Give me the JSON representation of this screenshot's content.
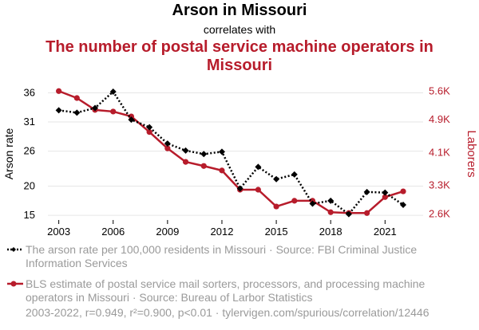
{
  "header": {
    "title": "Arson in Missouri",
    "subtitle": "correlates with",
    "title2": "The number of postal service machine operators in Missouri"
  },
  "chart_data": {
    "type": "line",
    "x": [
      2003,
      2004,
      2005,
      2006,
      2007,
      2008,
      2009,
      2010,
      2011,
      2012,
      2013,
      2014,
      2015,
      2016,
      2017,
      2018,
      2019,
      2020,
      2021,
      2022
    ],
    "xticks": [
      "2003",
      "2006",
      "2009",
      "2012",
      "2015",
      "2018",
      "2021"
    ],
    "xlim": [
      2002.4,
      2023.1
    ],
    "series": [
      {
        "name": "The arson rate per 100,000 residents in Missouri · Source: FBI Criminal Justice Information Services",
        "axis": "left",
        "color": "#000000",
        "style": "dotted-diamond",
        "values": [
          33.0,
          32.6,
          33.4,
          36.2,
          31.4,
          30.1,
          27.3,
          26.1,
          25.5,
          25.9,
          19.6,
          23.3,
          21.2,
          22.0,
          17.0,
          17.5,
          15.2,
          19.0,
          18.9,
          16.8
        ]
      },
      {
        "name": "BLS estimate of postal service mail sorters, processors, and processing machine operators in Missouri · Source: Bureau of Larbor Statistics",
        "axis": "right",
        "color": "#b71c2b",
        "style": "solid-circle",
        "values": [
          5600,
          5430,
          5140,
          5100,
          4980,
          4600,
          4200,
          3870,
          3770,
          3660,
          3190,
          3190,
          2780,
          2920,
          2920,
          2640,
          2620,
          2620,
          3010,
          3150
        ]
      }
    ],
    "left_axis": {
      "label": "Arson rate",
      "ticks": [
        15,
        20,
        26,
        31,
        36
      ],
      "tick_labels": [
        "15",
        "20",
        "26",
        "31",
        "36"
      ],
      "ylim": [
        14.2,
        37.7
      ]
    },
    "right_axis": {
      "label": "Laborers",
      "ticks": [
        2600,
        3300,
        4100,
        4900,
        5600
      ],
      "tick_labels": [
        "2.6K",
        "3.3K",
        "4.1K",
        "4.9K",
        "5.6K"
      ],
      "ylim": [
        2450,
        5800
      ]
    },
    "grid": "horizontal",
    "legend_position": "bottom"
  },
  "footer": {
    "stats": "2003-2022, r=0.949, r²=0.900, p<0.01 · tylervigen.com/spurious/correlation/12446"
  },
  "colors": {
    "accent": "#b71c2b",
    "series1": "#000000",
    "muted": "#9a9a9a"
  }
}
